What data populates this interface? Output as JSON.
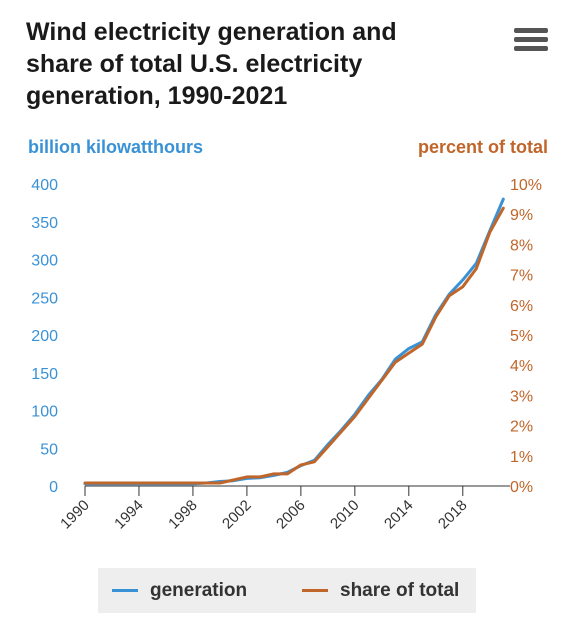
{
  "chart_data": {
    "type": "line",
    "title": [
      "Wind electricity generation and",
      "share of total U.S. electricity",
      "generation, 1990-2021"
    ],
    "y_left_label": "billion kilowatthours",
    "y_right_label": "percent of total",
    "y_left_ticks": [
      "0",
      "50",
      "100",
      "150",
      "200",
      "250",
      "300",
      "350",
      "400"
    ],
    "y_right_ticks": [
      "0%",
      "1%",
      "2%",
      "3%",
      "4%",
      "5%",
      "6%",
      "7%",
      "8%",
      "9%",
      "10%"
    ],
    "x_ticks": [
      "1990",
      "1994",
      "1998",
      "2002",
      "2006",
      "2010",
      "2014",
      "2018"
    ],
    "y_left_range": [
      0,
      400
    ],
    "y_right_range": [
      0,
      10
    ],
    "x": [
      1990,
      1991,
      1992,
      1993,
      1994,
      1995,
      1996,
      1997,
      1998,
      1999,
      2000,
      2001,
      2002,
      2003,
      2004,
      2005,
      2006,
      2007,
      2008,
      2009,
      2010,
      2011,
      2012,
      2013,
      2014,
      2015,
      2016,
      2017,
      2018,
      2019,
      2020,
      2021
    ],
    "series": [
      {
        "name": "generation",
        "color": "#3a92d6",
        "axis": "left",
        "values": [
          3,
          3,
          3,
          3,
          3,
          3,
          3,
          3,
          3,
          4,
          6,
          7,
          10,
          11,
          14,
          18,
          27,
          34,
          55,
          74,
          95,
          120,
          141,
          168,
          182,
          191,
          227,
          254,
          273,
          295,
          338,
          380
        ]
      },
      {
        "name": "share of total",
        "color": "#c0662a",
        "axis": "right",
        "values": [
          0.1,
          0.1,
          0.1,
          0.1,
          0.1,
          0.1,
          0.1,
          0.1,
          0.1,
          0.1,
          0.1,
          0.2,
          0.3,
          0.3,
          0.4,
          0.4,
          0.7,
          0.8,
          1.3,
          1.8,
          2.3,
          2.9,
          3.5,
          4.1,
          4.4,
          4.7,
          5.6,
          6.3,
          6.6,
          7.2,
          8.4,
          9.2
        ]
      }
    ],
    "grid": false,
    "legend_position": "bottom-center"
  }
}
